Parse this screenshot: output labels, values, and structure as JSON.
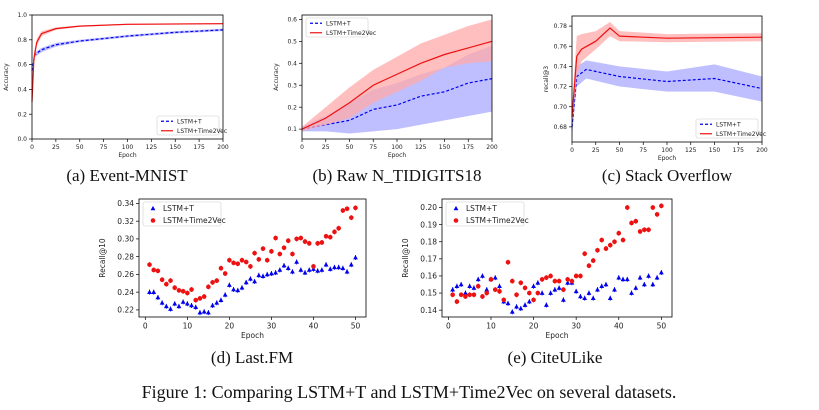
{
  "figure_caption": "Figure 1:  Comparing LSTM+T and LSTM+Time2Vec on several datasets.",
  "colors": {
    "lstm_t": "#0000ee",
    "time2vec": "#ee1111",
    "lstm_t_band": "#aaaaff",
    "time2vec_band": "#ffaaaa"
  },
  "chart_data": [
    {
      "id": "a",
      "caption": "(a) Event-MNIST",
      "type": "line",
      "xlabel": "Epoch",
      "ylabel": "Accuracy",
      "xlim": [
        0,
        200
      ],
      "ylim": [
        0,
        1.0
      ],
      "xticks": [
        "0",
        "25",
        "50",
        "75",
        "100",
        "125",
        "150",
        "175",
        "200"
      ],
      "yticks": [
        "0.0",
        "0.2",
        "0.4",
        "0.6",
        "0.8",
        "1.0"
      ],
      "legend": "lower-right",
      "series": [
        {
          "name": "LSTM+T",
          "style": "dashed",
          "x": [
            0,
            3,
            10,
            25,
            50,
            100,
            150,
            200
          ],
          "y": [
            0.55,
            0.68,
            0.72,
            0.76,
            0.79,
            0.83,
            0.86,
            0.88
          ],
          "lower": [
            0.53,
            0.66,
            0.7,
            0.745,
            0.78,
            0.82,
            0.85,
            0.87
          ],
          "upper": [
            0.57,
            0.7,
            0.735,
            0.775,
            0.8,
            0.84,
            0.87,
            0.89
          ]
        },
        {
          "name": "LSTM+Time2Vec",
          "style": "solid",
          "x": [
            0,
            2,
            5,
            10,
            25,
            50,
            100,
            200
          ],
          "y": [
            0.3,
            0.65,
            0.78,
            0.85,
            0.89,
            0.91,
            0.925,
            0.93
          ],
          "lower": [
            0.25,
            0.6,
            0.75,
            0.83,
            0.88,
            0.905,
            0.92,
            0.925
          ],
          "upper": [
            0.35,
            0.7,
            0.81,
            0.87,
            0.9,
            0.915,
            0.93,
            0.935
          ]
        }
      ]
    },
    {
      "id": "b",
      "caption": "(b) Raw N_TIDIGITS18",
      "type": "line",
      "xlabel": "Epoch",
      "ylabel": "Accuracy",
      "xlim": [
        0,
        200
      ],
      "ylim": [
        0.055,
        0.62
      ],
      "xticks": [
        "0",
        "25",
        "50",
        "75",
        "100",
        "125",
        "150",
        "175",
        "200"
      ],
      "yticks": [
        "0.1",
        "0.2",
        "0.3",
        "0.4",
        "0.5",
        "0.6"
      ],
      "legend": "upper-left",
      "series": [
        {
          "name": "LSTM+T",
          "style": "dashed",
          "x": [
            0,
            25,
            50,
            75,
            100,
            125,
            150,
            175,
            200
          ],
          "y": [
            0.1,
            0.12,
            0.14,
            0.19,
            0.21,
            0.25,
            0.27,
            0.31,
            0.33
          ],
          "lower": [
            0.09,
            0.09,
            0.08,
            0.09,
            0.1,
            0.12,
            0.14,
            0.16,
            0.18
          ],
          "upper": [
            0.11,
            0.16,
            0.22,
            0.28,
            0.31,
            0.35,
            0.38,
            0.44,
            0.48
          ]
        },
        {
          "name": "LSTM+Time2Vec",
          "style": "solid",
          "x": [
            0,
            25,
            50,
            75,
            100,
            125,
            150,
            175,
            200
          ],
          "y": [
            0.1,
            0.15,
            0.22,
            0.3,
            0.35,
            0.4,
            0.44,
            0.47,
            0.5
          ],
          "lower": [
            0.09,
            0.12,
            0.15,
            0.22,
            0.27,
            0.32,
            0.38,
            0.4,
            0.41
          ],
          "upper": [
            0.11,
            0.2,
            0.29,
            0.37,
            0.43,
            0.49,
            0.53,
            0.57,
            0.6
          ]
        }
      ]
    },
    {
      "id": "c",
      "caption": "(c) Stack Overflow",
      "type": "line",
      "xlabel": "Epoch",
      "ylabel": "recall@3",
      "xlim": [
        0,
        200
      ],
      "ylim": [
        0.665,
        0.79
      ],
      "xticks": [
        "0",
        "25",
        "50",
        "75",
        "100",
        "125",
        "150",
        "175",
        "200"
      ],
      "yticks": [
        "0.68",
        "0.70",
        "0.72",
        "0.74",
        "0.76",
        "0.78"
      ],
      "legend": "lower-right",
      "series": [
        {
          "name": "LSTM+T",
          "style": "dashed",
          "x": [
            0,
            5,
            15,
            50,
            100,
            150,
            200
          ],
          "y": [
            0.68,
            0.73,
            0.737,
            0.73,
            0.725,
            0.728,
            0.718
          ],
          "lower": [
            0.67,
            0.72,
            0.728,
            0.72,
            0.715,
            0.715,
            0.705
          ],
          "upper": [
            0.69,
            0.74,
            0.746,
            0.74,
            0.735,
            0.742,
            0.73
          ]
        },
        {
          "name": "LSTM+Time2Vec",
          "style": "solid",
          "x": [
            0,
            5,
            10,
            25,
            40,
            50,
            100,
            200
          ],
          "y": [
            0.69,
            0.75,
            0.757,
            0.765,
            0.778,
            0.77,
            0.768,
            0.769
          ],
          "lower": [
            0.68,
            0.73,
            0.745,
            0.757,
            0.77,
            0.765,
            0.764,
            0.765
          ],
          "upper": [
            0.7,
            0.77,
            0.772,
            0.775,
            0.784,
            0.775,
            0.772,
            0.773
          ]
        }
      ]
    },
    {
      "id": "d",
      "caption": "(d) Last.FM",
      "type": "scatter",
      "xlabel": "Epoch",
      "ylabel": "Recall@10",
      "xlim": [
        -1.5,
        52.5
      ],
      "ylim": [
        0.212,
        0.345
      ],
      "xticks": [
        "0",
        "10",
        "20",
        "30",
        "40",
        "50"
      ],
      "yticks": [
        "0.22",
        "0.24",
        "0.26",
        "0.28",
        "0.30",
        "0.32",
        "0.34"
      ],
      "legend": "upper-left",
      "series": [
        {
          "name": "LSTM+T",
          "marker": "triangle",
          "y": [
            0.24,
            0.24,
            0.234,
            0.228,
            0.224,
            0.221,
            0.227,
            0.224,
            0.229,
            0.227,
            0.225,
            0.223,
            0.217,
            0.218,
            0.217,
            0.225,
            0.228,
            0.231,
            0.237,
            0.248,
            0.243,
            0.242,
            0.245,
            0.251,
            0.255,
            0.252,
            0.259,
            0.258,
            0.26,
            0.261,
            0.262,
            0.265,
            0.27,
            0.267,
            0.263,
            0.274,
            0.265,
            0.262,
            0.265,
            0.266,
            0.264,
            0.265,
            0.271,
            0.266,
            0.268,
            0.268,
            0.267,
            0.263,
            0.271,
            0.279
          ]
        },
        {
          "name": "LSTM+Time2Vec",
          "marker": "circle",
          "y": [
            0.271,
            0.265,
            0.264,
            0.254,
            0.249,
            0.253,
            0.245,
            0.242,
            0.241,
            0.239,
            0.243,
            0.231,
            0.233,
            0.235,
            0.246,
            0.251,
            0.253,
            0.267,
            0.261,
            0.276,
            0.273,
            0.272,
            0.276,
            0.274,
            0.269,
            0.284,
            0.277,
            0.289,
            0.276,
            0.286,
            0.301,
            0.283,
            0.29,
            0.298,
            0.283,
            0.3,
            0.301,
            0.297,
            0.295,
            0.269,
            0.295,
            0.296,
            0.303,
            0.302,
            0.308,
            0.312,
            0.332,
            0.334,
            0.324,
            0.335
          ]
        }
      ]
    },
    {
      "id": "e",
      "caption": "(e) CiteULike",
      "type": "scatter",
      "xlabel": "Epoch",
      "ylabel": "Recall@10",
      "xlim": [
        -1.5,
        52.5
      ],
      "ylim": [
        0.136,
        0.205
      ],
      "xticks": [
        "0",
        "10",
        "20",
        "30",
        "40",
        "50"
      ],
      "yticks": [
        "0.14",
        "0.15",
        "0.16",
        "0.17",
        "0.18",
        "0.19",
        "0.20"
      ],
      "legend": "upper-left",
      "series": [
        {
          "name": "LSTM+T",
          "marker": "triangle",
          "y": [
            0.152,
            0.154,
            0.155,
            0.15,
            0.154,
            0.153,
            0.158,
            0.16,
            0.152,
            0.158,
            0.159,
            0.154,
            0.145,
            0.144,
            0.139,
            0.142,
            0.141,
            0.143,
            0.145,
            0.154,
            0.156,
            0.15,
            0.143,
            0.15,
            0.152,
            0.153,
            0.146,
            0.156,
            0.156,
            0.151,
            0.148,
            0.147,
            0.15,
            0.147,
            0.152,
            0.154,
            0.155,
            0.147,
            0.152,
            0.159,
            0.158,
            0.158,
            0.15,
            0.153,
            0.159,
            0.155,
            0.16,
            0.155,
            0.159,
            0.162
          ]
        },
        {
          "name": "LSTM+Time2Vec",
          "marker": "circle",
          "y": [
            0.149,
            0.145,
            0.149,
            0.148,
            0.149,
            0.149,
            0.154,
            0.148,
            0.15,
            0.158,
            0.152,
            0.151,
            0.146,
            0.168,
            0.157,
            0.149,
            0.156,
            0.153,
            0.15,
            0.146,
            0.15,
            0.158,
            0.159,
            0.16,
            0.157,
            0.157,
            0.152,
            0.158,
            0.157,
            0.16,
            0.16,
            0.173,
            0.166,
            0.169,
            0.175,
            0.181,
            0.176,
            0.178,
            0.18,
            0.185,
            0.181,
            0.2,
            0.191,
            0.192,
            0.186,
            0.187,
            0.187,
            0.2,
            0.196,
            0.201
          ]
        }
      ]
    }
  ]
}
